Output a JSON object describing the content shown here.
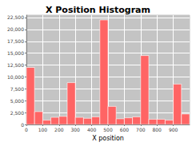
{
  "chart_data": {
    "type": "histogram",
    "title": "X Position Histogram",
    "xlabel": "X position",
    "bins": [
      0,
      50,
      100,
      150,
      200,
      250,
      300,
      350,
      400,
      450,
      500,
      550,
      600,
      650,
      700,
      750,
      800,
      850,
      900,
      950,
      1000
    ],
    "values": [
      12000,
      2700,
      900,
      1500,
      1700,
      8800,
      1500,
      1300,
      1600,
      22000,
      3800,
      1200,
      1400,
      1600,
      14500,
      1100,
      1100,
      900,
      8500,
      2200
    ],
    "color": "#ff6464",
    "xlim": [
      0,
      1000
    ],
    "xticks": [
      0,
      100,
      200,
      300,
      400,
      500,
      600,
      700,
      800,
      900
    ],
    "ylim": [
      0,
      23000
    ],
    "yticks": [
      0,
      {
        "value": 2500,
        "label": "2,500"
      },
      {
        "value": 5000,
        "label": "5,000"
      },
      {
        "value": 7500,
        "label": "7,500"
      },
      {
        "value": 10000,
        "label": "10,000"
      },
      {
        "value": 12500,
        "label": "12,500"
      },
      {
        "value": 15000,
        "label": "15,000"
      },
      {
        "value": 17500,
        "label": "17,500"
      },
      {
        "value": 20000,
        "label": "20,000"
      },
      {
        "value": 22500,
        "label": "22,500"
      }
    ],
    "grid": true
  }
}
